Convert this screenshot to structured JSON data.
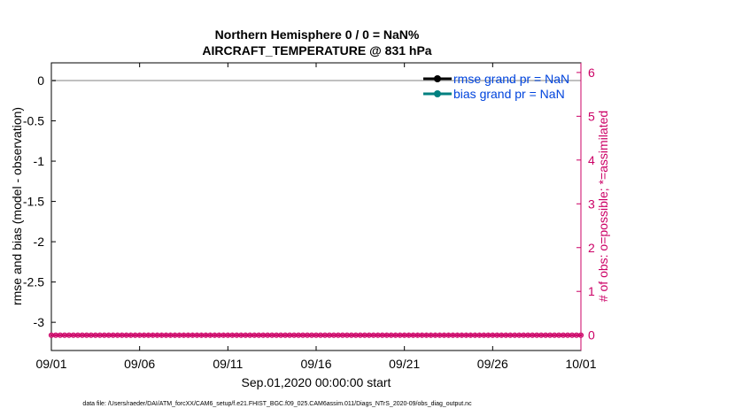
{
  "chart_data": {
    "type": "line",
    "title": "Northern Hemisphere 0 / 0 = NaN%",
    "subtitle": "AIRCRAFT_TEMPERATURE @ 831 hPa",
    "xlabel": "Sep.01,2020 00:00:00 start",
    "ylabel_left": "rmse and bias (model - observation)",
    "ylabel_right": "# of obs: o=possible; *=assimilated",
    "x_ticks": [
      "09/01",
      "09/06",
      "09/11",
      "09/16",
      "09/21",
      "09/26",
      "10/01"
    ],
    "x_tick_days": [
      0,
      5,
      10,
      15,
      20,
      25,
      30
    ],
    "xlim_days": [
      0,
      30
    ],
    "y_left_ticks": [
      "0",
      "-0.5",
      "-1",
      "-1.5",
      "-2",
      "-2.5",
      "-3"
    ],
    "y_left_values": [
      0,
      -0.5,
      -1,
      -1.5,
      -2,
      -2.5,
      -3
    ],
    "ylim_left": [
      -3.35,
      0.22
    ],
    "y_right_ticks": [
      "0",
      "1",
      "2",
      "3",
      "4",
      "5",
      "6"
    ],
    "y_right_values": [
      0,
      1,
      2,
      3,
      4,
      5,
      6
    ],
    "ylim_right": [
      -0.35,
      6.22
    ],
    "grid": false,
    "legend_position": "top-right",
    "series": [
      {
        "name": "rmse grand pr = NaN",
        "color": "#000000",
        "marker": "filled-circle",
        "values": []
      },
      {
        "name": "bias grand pr = NaN",
        "color": "#008080",
        "marker": "filled-circle",
        "values": []
      },
      {
        "name": "",
        "color": "#c0c0c0",
        "marker": "none",
        "constant": 0
      },
      {
        "name": "",
        "color": "#cc0066",
        "marker": "o",
        "obs_counts": "0 at every interval"
      },
      {
        "name": "",
        "color": "#cc0066",
        "marker": "*",
        "obs_counts": "0 at every interval"
      }
    ],
    "obs_possible_per_interval": 0,
    "obs_assimilated_per_interval": 0
  },
  "colors": {
    "right_axis": "#cc0066",
    "legend_text": "#0044dd",
    "reference_line": "#c0c0c0"
  },
  "footer": "data file: /Users/raeder/DAI/ATM_forcXX/CAM6_setup/f.e21.FHIST_BGC.f09_025.CAM6assim.011/Diags_NTrS_2020-09/obs_diag_output.nc"
}
